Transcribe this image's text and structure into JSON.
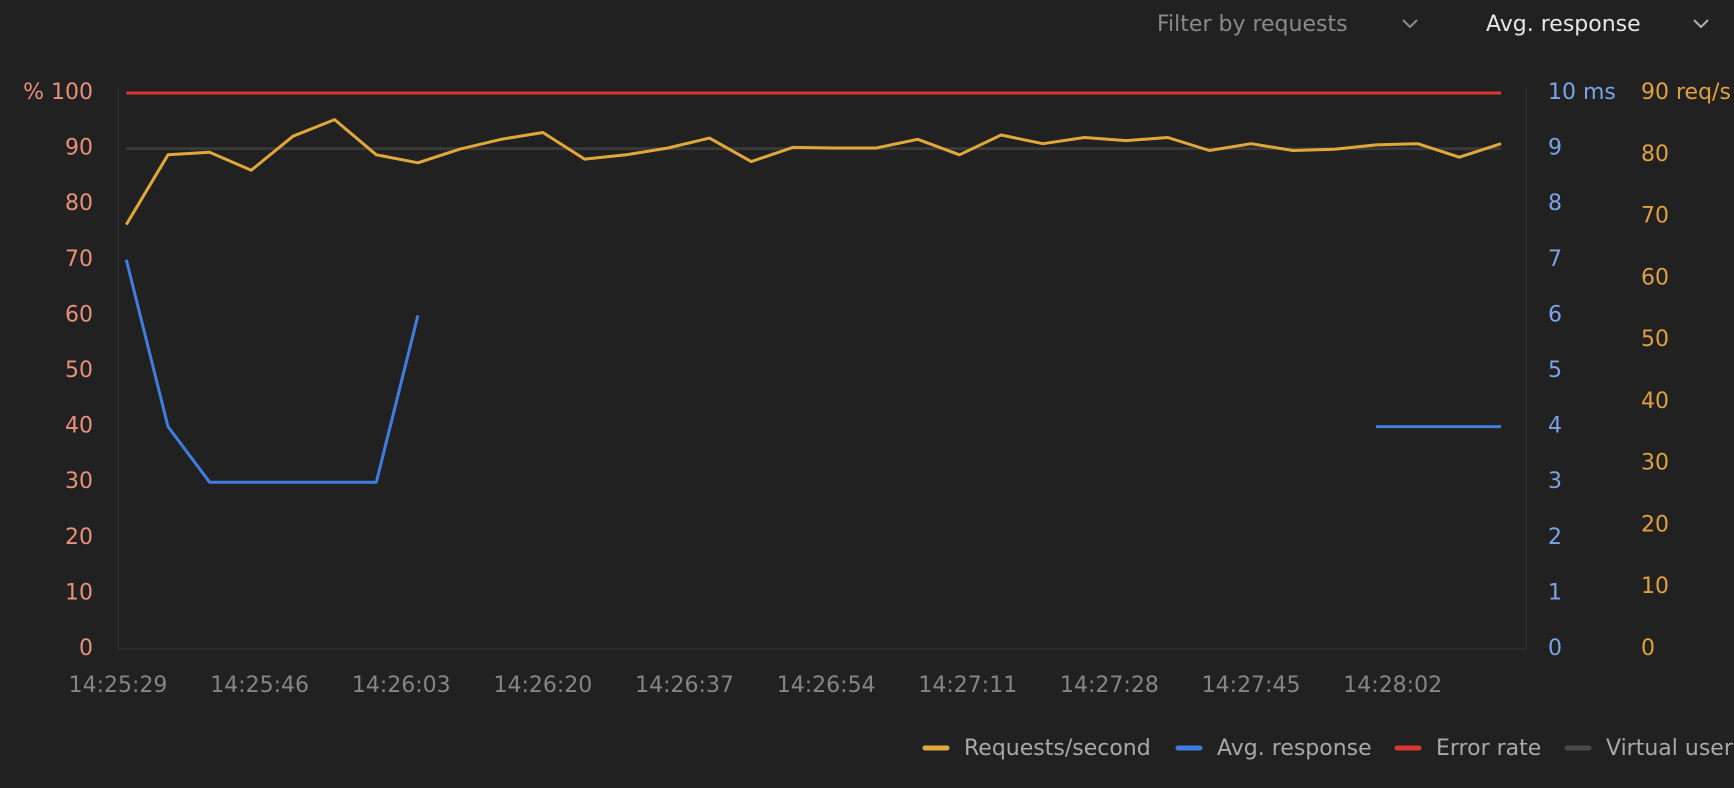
{
  "toolbar": {
    "filter": "Filter by requests",
    "metric": "Avg. response"
  },
  "chart_data": {
    "type": "line",
    "x": [
      "14:25:30",
      "14:25:35",
      "14:25:40",
      "14:25:45",
      "14:25:50",
      "14:25:55",
      "14:26:00",
      "14:26:05",
      "14:26:10",
      "14:26:15",
      "14:26:20",
      "14:26:25",
      "14:26:30",
      "14:26:35",
      "14:26:40",
      "14:26:45",
      "14:26:50",
      "14:26:55",
      "14:27:00",
      "14:27:05",
      "14:27:10",
      "14:27:15",
      "14:27:20",
      "14:27:25",
      "14:27:30",
      "14:27:35",
      "14:27:40",
      "14:27:45",
      "14:27:50",
      "14:27:55",
      "14:28:00",
      "14:28:05",
      "14:28:10",
      "14:28:15"
    ],
    "xlim": [
      "14:25:29",
      "14:28:18"
    ],
    "xticks": [
      "14:25:29",
      "14:25:46",
      "14:26:03",
      "14:26:20",
      "14:26:37",
      "14:26:54",
      "14:27:11",
      "14:27:28",
      "14:27:45",
      "14:28:02"
    ],
    "ylim": [
      0,
      100
    ],
    "yticks": [
      0,
      10,
      20,
      30,
      40,
      50,
      60,
      70,
      80,
      90,
      {
        "value": 100,
        "label": "% 100"
      }
    ],
    "y2lim": [
      0,
      10
    ],
    "y2ticks": [
      0,
      1,
      2,
      3,
      4,
      5,
      6,
      7,
      8,
      9,
      {
        "value": 10,
        "label": "10 ms"
      }
    ],
    "y3lim": [
      0,
      90
    ],
    "y3ticks": [
      0,
      10,
      20,
      30,
      40,
      50,
      60,
      70,
      80,
      {
        "value": 90,
        "label": "90 req/s"
      }
    ],
    "series": [
      {
        "name": "Requests/second",
        "color": "#e0a73a",
        "axis": "y3",
        "values": [
          68.7,
          80.0,
          80.4,
          77.5,
          83.0,
          85.7,
          80.0,
          78.7,
          80.9,
          82.5,
          83.6,
          79.3,
          80.0,
          81.1,
          82.7,
          78.9,
          81.2,
          81.1,
          81.1,
          82.5,
          80.0,
          83.2,
          81.8,
          82.8,
          82.3,
          82.8,
          80.7,
          81.8,
          80.7,
          80.9,
          81.6,
          81.8,
          79.6,
          81.8
        ]
      },
      {
        "name": "Avg. response",
        "color": "#3d7ee0",
        "axis": "y2",
        "values": [
          7,
          4,
          3,
          3,
          3,
          3,
          3,
          6,
          null,
          null,
          null,
          null,
          null,
          null,
          null,
          null,
          null,
          null,
          null,
          null,
          null,
          null,
          null,
          null,
          null,
          null,
          null,
          null,
          null,
          null,
          4,
          4,
          4,
          4
        ]
      },
      {
        "name": "Error rate",
        "color": "#d8382f",
        "axis": "y",
        "values": [
          100,
          100,
          100,
          100,
          100,
          100,
          100,
          100,
          100,
          100,
          100,
          100,
          100,
          100,
          100,
          100,
          100,
          100,
          100,
          100,
          100,
          100,
          100,
          100,
          100,
          100,
          100,
          100,
          100,
          100,
          100,
          100,
          100,
          100
        ]
      },
      {
        "name": "Virtual users",
        "color": "#3a3a3a",
        "axis": "y",
        "values": [
          90,
          90,
          90,
          90,
          90,
          90,
          90,
          90,
          90,
          90,
          90,
          90,
          90,
          90,
          90,
          90,
          90,
          90,
          90,
          90,
          90,
          90,
          90,
          90,
          90,
          90,
          90,
          90,
          90,
          90,
          90,
          90,
          90,
          90
        ]
      }
    ]
  }
}
